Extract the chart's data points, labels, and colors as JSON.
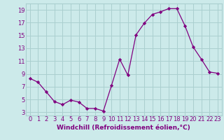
{
  "x": [
    0,
    1,
    2,
    3,
    4,
    5,
    6,
    7,
    8,
    9,
    10,
    11,
    12,
    13,
    14,
    15,
    16,
    17,
    18,
    19,
    20,
    21,
    22,
    23
  ],
  "y": [
    8.3,
    7.7,
    6.2,
    4.7,
    4.2,
    4.9,
    4.6,
    3.6,
    3.6,
    3.2,
    7.2,
    11.3,
    8.8,
    15.1,
    16.9,
    18.3,
    18.7,
    19.2,
    19.2,
    16.5,
    13.2,
    11.3,
    9.3,
    9.1
  ],
  "line_color": "#800080",
  "marker": "D",
  "marker_size": 2.2,
  "bg_color": "#cceaea",
  "grid_color": "#aacfcf",
  "xlabel": "Windchill (Refroidissement éolien,°C)",
  "xlim": [
    -0.5,
    23.5
  ],
  "ylim": [
    2.5,
    20.0
  ],
  "yticks": [
    3,
    5,
    7,
    9,
    11,
    13,
    15,
    17,
    19
  ],
  "xticks": [
    0,
    1,
    2,
    3,
    4,
    5,
    6,
    7,
    8,
    9,
    10,
    11,
    12,
    13,
    14,
    15,
    16,
    17,
    18,
    19,
    20,
    21,
    22,
    23
  ],
  "font_color": "#800080",
  "font_size_label": 6.5,
  "font_size_tick": 6.0,
  "linewidth": 0.9
}
